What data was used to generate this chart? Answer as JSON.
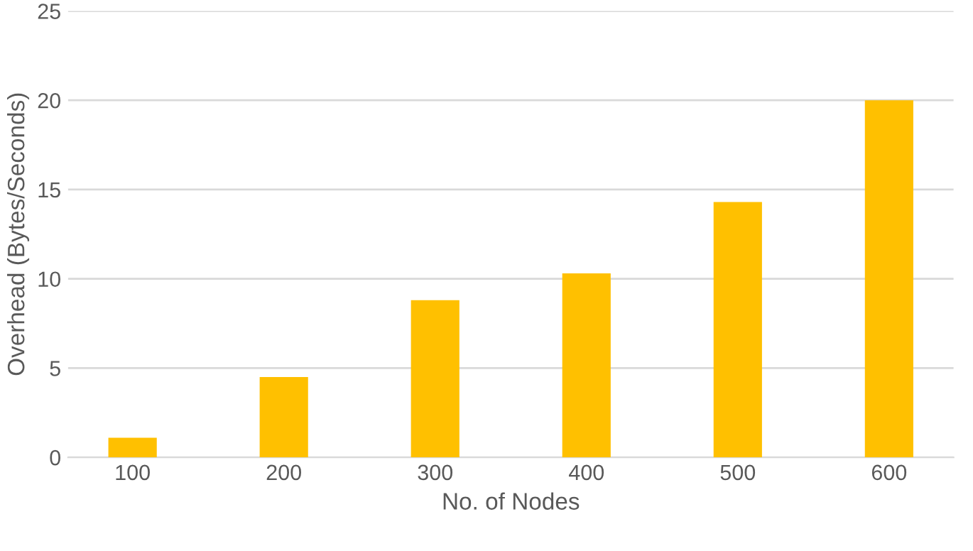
{
  "chart_data": {
    "type": "bar",
    "xlabel": "No. of Nodes",
    "ylabel": "Overhead (Bytes/Seconds)",
    "categories": [
      "100",
      "200",
      "300",
      "400",
      "500",
      "600"
    ],
    "values": [
      1.1,
      4.5,
      8.8,
      10.3,
      14.3,
      20.0
    ],
    "color": "#ffc000",
    "ylim": [
      0,
      25
    ],
    "yticks": [
      0,
      5,
      10,
      15,
      20,
      25
    ],
    "grid": "y"
  }
}
